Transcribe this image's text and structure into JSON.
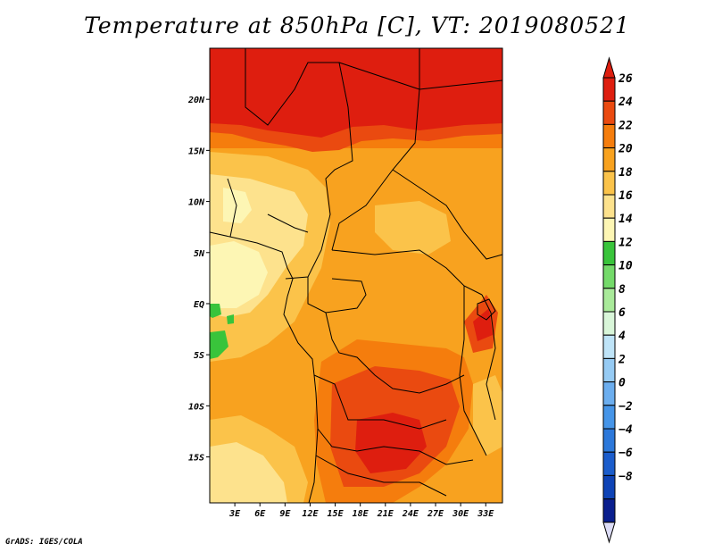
{
  "title": "Temperature at 850hPa [C], VT: 2019080521",
  "credit": "GrADS: IGES/COLA",
  "map": {
    "lon_range": [
      0,
      35
    ],
    "lat_range": [
      -19.5,
      25
    ],
    "lat_ticks": [
      {
        "value": 20,
        "label": "20N"
      },
      {
        "value": 15,
        "label": "15N"
      },
      {
        "value": 10,
        "label": "10N"
      },
      {
        "value": 5,
        "label": "5N"
      },
      {
        "value": 0,
        "label": "EQ"
      },
      {
        "value": -5,
        "label": "5S"
      },
      {
        "value": -10,
        "label": "10S"
      },
      {
        "value": -15,
        "label": "15S"
      }
    ],
    "lon_ticks": [
      {
        "value": 3,
        "label": "3E"
      },
      {
        "value": 6,
        "label": "6E"
      },
      {
        "value": 9,
        "label": "9E"
      },
      {
        "value": 12,
        "label": "12E"
      },
      {
        "value": 15,
        "label": "15E"
      },
      {
        "value": 18,
        "label": "18E"
      },
      {
        "value": 21,
        "label": "21E"
      },
      {
        "value": 24,
        "label": "24E"
      },
      {
        "value": 27,
        "label": "27E"
      },
      {
        "value": 30,
        "label": "30E"
      },
      {
        "value": 33,
        "label": "33E"
      }
    ]
  },
  "colorbar": {
    "label_values": [
      "26",
      "24",
      "22",
      "20",
      "18",
      "16",
      "14",
      "12",
      "10",
      "8",
      "6",
      "4",
      "2",
      "0",
      "−2",
      "−4",
      "−6",
      "−8"
    ],
    "colors": [
      "#de1e0f",
      "#ea4a10",
      "#f57d0d",
      "#f8a21f",
      "#fbc34a",
      "#fde28d",
      "#fdf6b4",
      "#39c43b",
      "#74da6a",
      "#a9ea9a",
      "#d9f6d9",
      "#bfe4f8",
      "#96cbf4",
      "#6caeef",
      "#4695e8",
      "#2c78da",
      "#1b5dcc",
      "#0e43b6",
      "#0a1f8e"
    ],
    "over_color": "#de1e0f",
    "under_color": "#dcdcf6"
  }
}
